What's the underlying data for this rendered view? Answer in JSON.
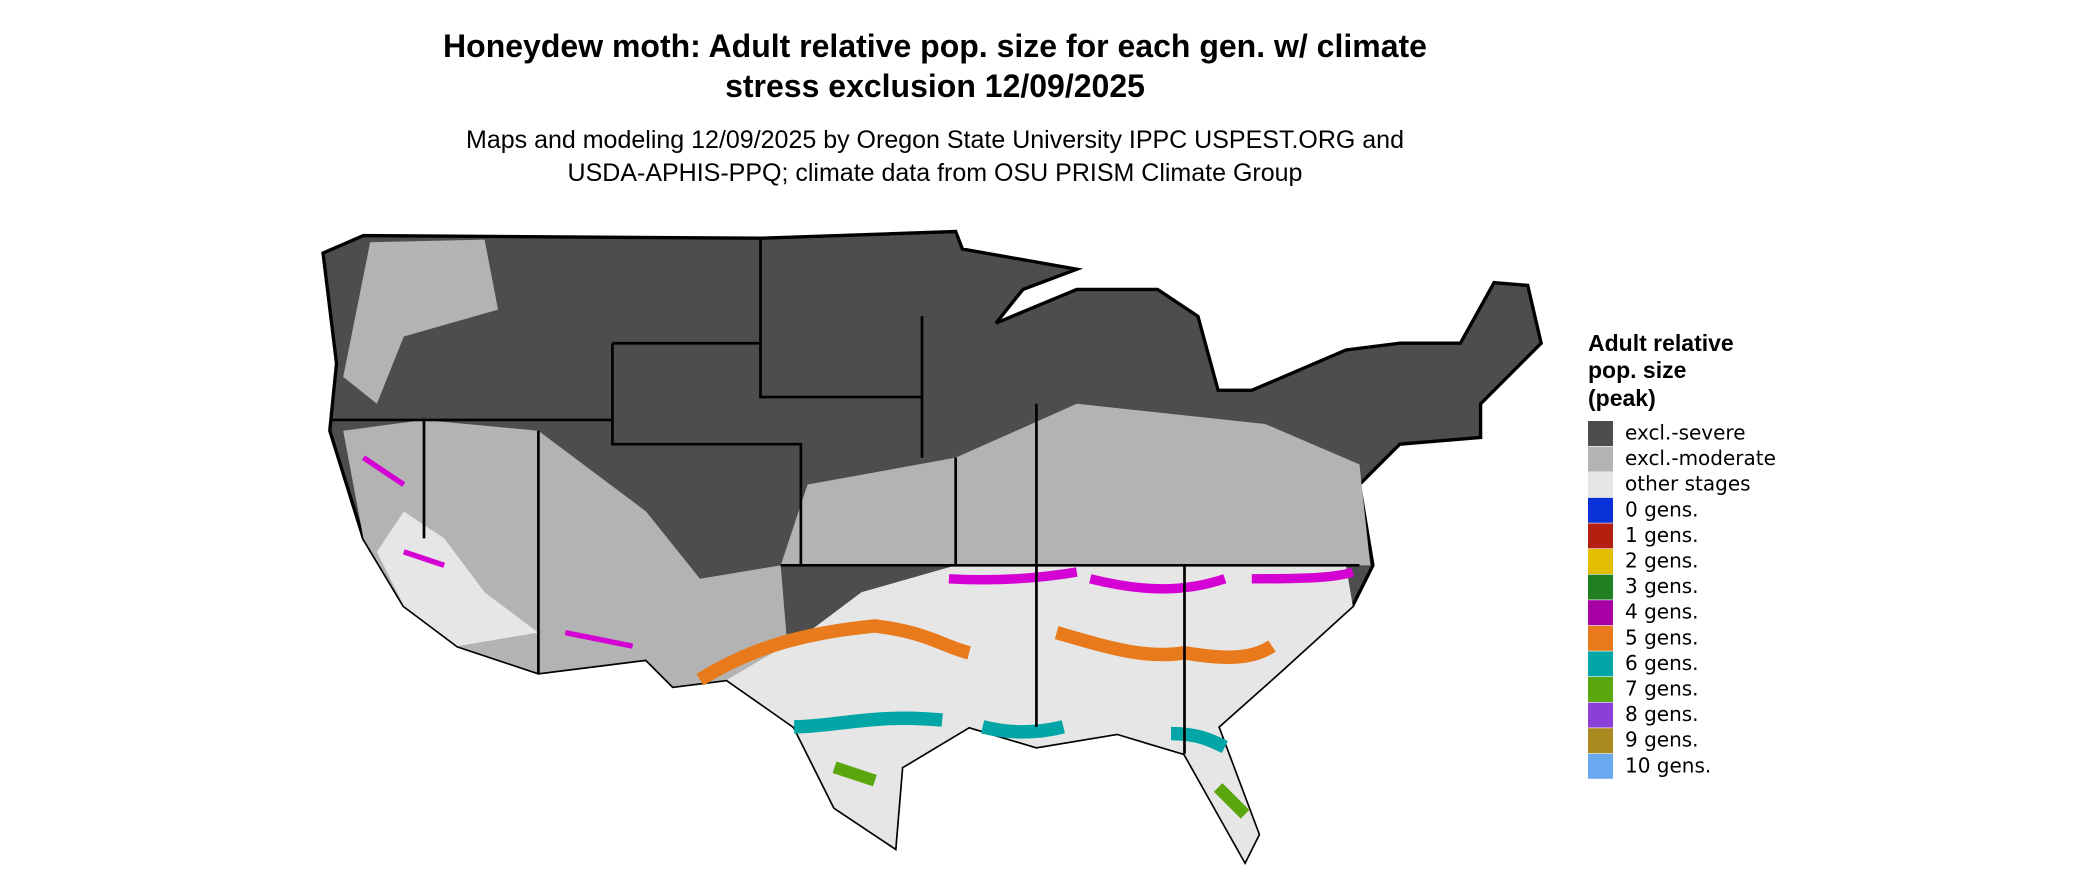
{
  "header": {
    "title_lines": [
      "Honeydew moth: Adult relative pop. size for each gen. w/ climate",
      "stress exclusion 12/09/2025"
    ],
    "subtitle_lines": [
      "Maps and modeling 12/09/2025 by Oregon State University IPPC USPEST.ORG and",
      "USDA-APHIS-PPQ; climate data from OSU PRISM Climate Group"
    ]
  },
  "legend": {
    "title_lines": [
      "Adult relative",
      "pop. size",
      "(peak)"
    ],
    "items": [
      {
        "label": "excl.-severe",
        "color": "#4d4d4d"
      },
      {
        "label": "excl.-moderate",
        "color": "#b3b3b3"
      },
      {
        "label": "other stages",
        "color": "#e6e6e6"
      },
      {
        "label": "0 gens.",
        "color": "#0a31d8"
      },
      {
        "label": "1 gens.",
        "color": "#b3200f"
      },
      {
        "label": "2 gens.",
        "color": "#e3bd00"
      },
      {
        "label": "3 gens.",
        "color": "#1f7f21"
      },
      {
        "label": "4 gens.",
        "color": "#a600a6"
      },
      {
        "label": "5 gens.",
        "color": "#e87a1b"
      },
      {
        "label": "6 gens.",
        "color": "#03a6a6"
      },
      {
        "label": "7 gens.",
        "color": "#5aa60d"
      },
      {
        "label": "8 gens.",
        "color": "#8a3fd6"
      },
      {
        "label": "9 gens.",
        "color": "#a88a20"
      },
      {
        "label": "10 gens.",
        "color": "#6aa8f0"
      }
    ]
  }
}
